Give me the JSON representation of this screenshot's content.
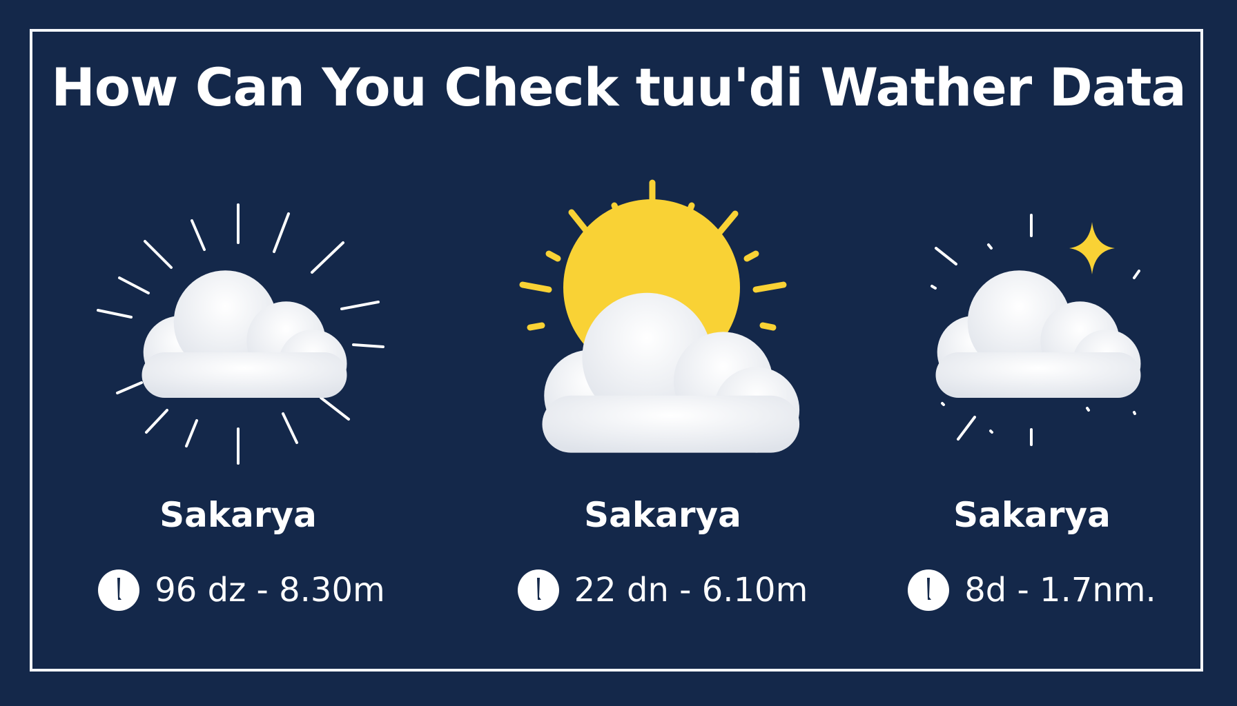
{
  "title": "How Can You Check tuu'di Wather Data",
  "colors": {
    "background": "#14284a",
    "sun": "#f9d235",
    "cloud": "#f4f5f8",
    "text": "#ffffff"
  },
  "cards": [
    {
      "icon": "cloud-with-rays-icon",
      "city": "Sakarya",
      "time_icon": "clock-icon",
      "reading": "96 dz - 8.30m"
    },
    {
      "icon": "sun-behind-cloud-icon",
      "city": "Sakarya",
      "time_icon": "clock-icon",
      "reading": "22 dn - 6.10m"
    },
    {
      "icon": "cloud-with-sparkle-icon",
      "city": "Sakarya",
      "time_icon": "clock-icon",
      "reading": "8d - 1.7nm."
    }
  ]
}
